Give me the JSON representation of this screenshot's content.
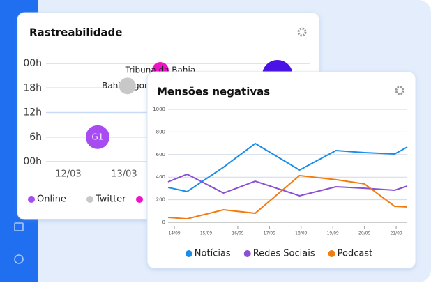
{
  "chart_data": [
    {
      "type": "bubble",
      "title": "Rastreabilidade",
      "xlim": [
        11.6,
        16.34
      ],
      "xticks": [
        {
          "value": 12,
          "label": "12/03"
        },
        {
          "value": 13,
          "label": "13/03"
        }
      ],
      "ylim": [
        0,
        24
      ],
      "yticks": [
        {
          "value": 0,
          "label": "00h"
        },
        {
          "value": 6,
          "label": "6h"
        },
        {
          "value": 12,
          "label": "12h"
        },
        {
          "value": 18,
          "label": "18h"
        },
        {
          "value": 24,
          "label": "00h"
        }
      ],
      "grid": true,
      "points": {
        "labels": [
          "G1",
          "Bahia Agora",
          "Tribuna da Bahia",
          null
        ],
        "x": [
          12.525,
          13.06,
          13.65,
          15.75
        ],
        "y": [
          6,
          18.5,
          22.3,
          21.1
        ],
        "sizes": [
          17,
          12,
          12,
          22
        ],
        "colors": [
          "#a64cf0",
          "#c8c8c8",
          "#f012c8",
          "#4a12e6"
        ],
        "label_colors": [
          "#ffffff",
          "#222222",
          "#222222",
          null
        ],
        "label_layer": [
          "above",
          "below",
          "above",
          null
        ]
      },
      "legend": [
        {
          "name": "Online",
          "color": "#a64cf0"
        },
        {
          "name": "Twitter",
          "color": "#c8c8c8"
        }
      ]
    },
    {
      "type": "line",
      "title": "Mensões negativas",
      "x": [
        13.8,
        14.4,
        15.55,
        16.55,
        17.95,
        19.1,
        20,
        20.95,
        21.35
      ],
      "xlim": [
        13.8,
        21.35
      ],
      "xticks": [
        {
          "value": 14,
          "label": "14/09"
        },
        {
          "value": 15,
          "label": "15/09"
        },
        {
          "value": 16,
          "label": "16/09"
        },
        {
          "value": 17,
          "label": "17/09"
        },
        {
          "value": 18,
          "label": "18/09"
        },
        {
          "value": 19,
          "label": "19/09"
        },
        {
          "value": 20,
          "label": "20/09"
        },
        {
          "value": 21,
          "label": "21/09"
        }
      ],
      "ylim": [
        0,
        1000
      ],
      "yticks": [
        0,
        200,
        400,
        600,
        800,
        1000
      ],
      "grid": true,
      "series": [
        {
          "name": "Notícias",
          "color": "#1a8de8",
          "values": [
            309,
            272,
            488,
            698,
            463,
            636,
            617,
            605,
            667
          ]
        },
        {
          "name": "Redes Sociais",
          "color": "#8a4fd6",
          "values": [
            358,
            426,
            259,
            364,
            235,
            315,
            302,
            284,
            321
          ]
        },
        {
          "name": "Podcast",
          "color": "#f07c12",
          "values": [
            43,
            31,
            111,
            80,
            414,
            377,
            340,
            142,
            136
          ]
        }
      ],
      "legend": "bottom"
    }
  ]
}
